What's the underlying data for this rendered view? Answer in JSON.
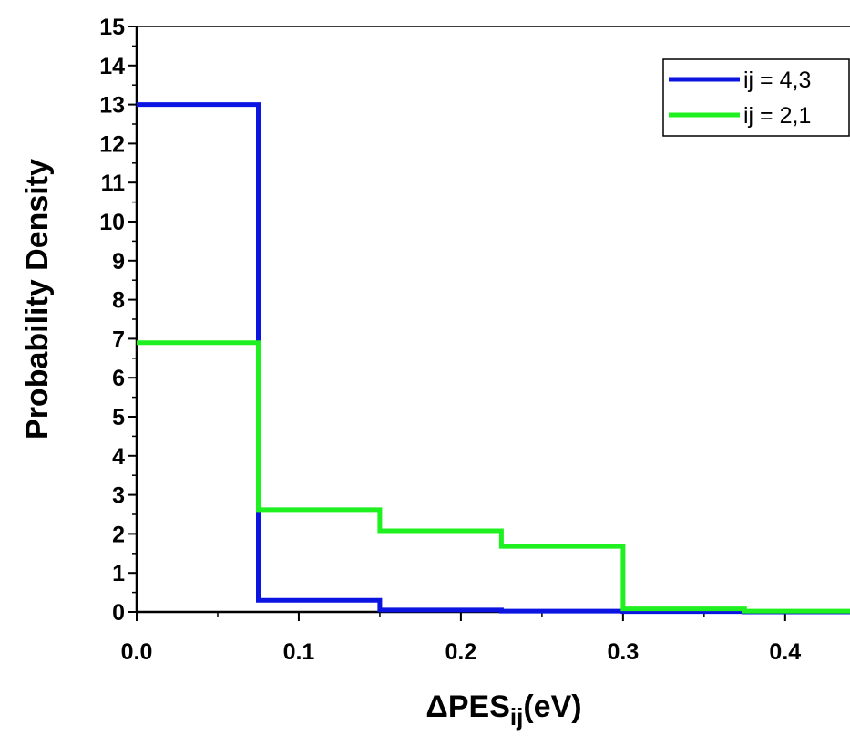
{
  "chart_data": {
    "type": "line",
    "step": true,
    "xlabel": {
      "main": "ΔPES",
      "sub": "ij",
      "tail": "(eV)"
    },
    "ylabel": "Probability Density",
    "xlim": [
      0,
      0.44
    ],
    "ylim": [
      0,
      15
    ],
    "x_ticks": [
      "0.0",
      "0.1",
      "0.2",
      "0.3",
      "0.4"
    ],
    "y_ticks": [
      "0",
      "1",
      "2",
      "3",
      "4",
      "5",
      "6",
      "7",
      "8",
      "9",
      "10",
      "11",
      "12",
      "13",
      "14",
      "15"
    ],
    "grid": false,
    "legend_position": "top-right",
    "bin_edges": [
      0,
      0.075,
      0.15,
      0.225,
      0.3,
      0.375,
      0.44
    ],
    "series": [
      {
        "name": "ij = 4,3",
        "color": "#0b14e0",
        "values": [
          13.0,
          0.3,
          0.05,
          0.02,
          0.01,
          0.0
        ]
      },
      {
        "name": "ij = 2,1",
        "color": "#1ff01f",
        "values": [
          6.9,
          2.62,
          2.08,
          1.68,
          0.08,
          0.02
        ]
      }
    ]
  }
}
